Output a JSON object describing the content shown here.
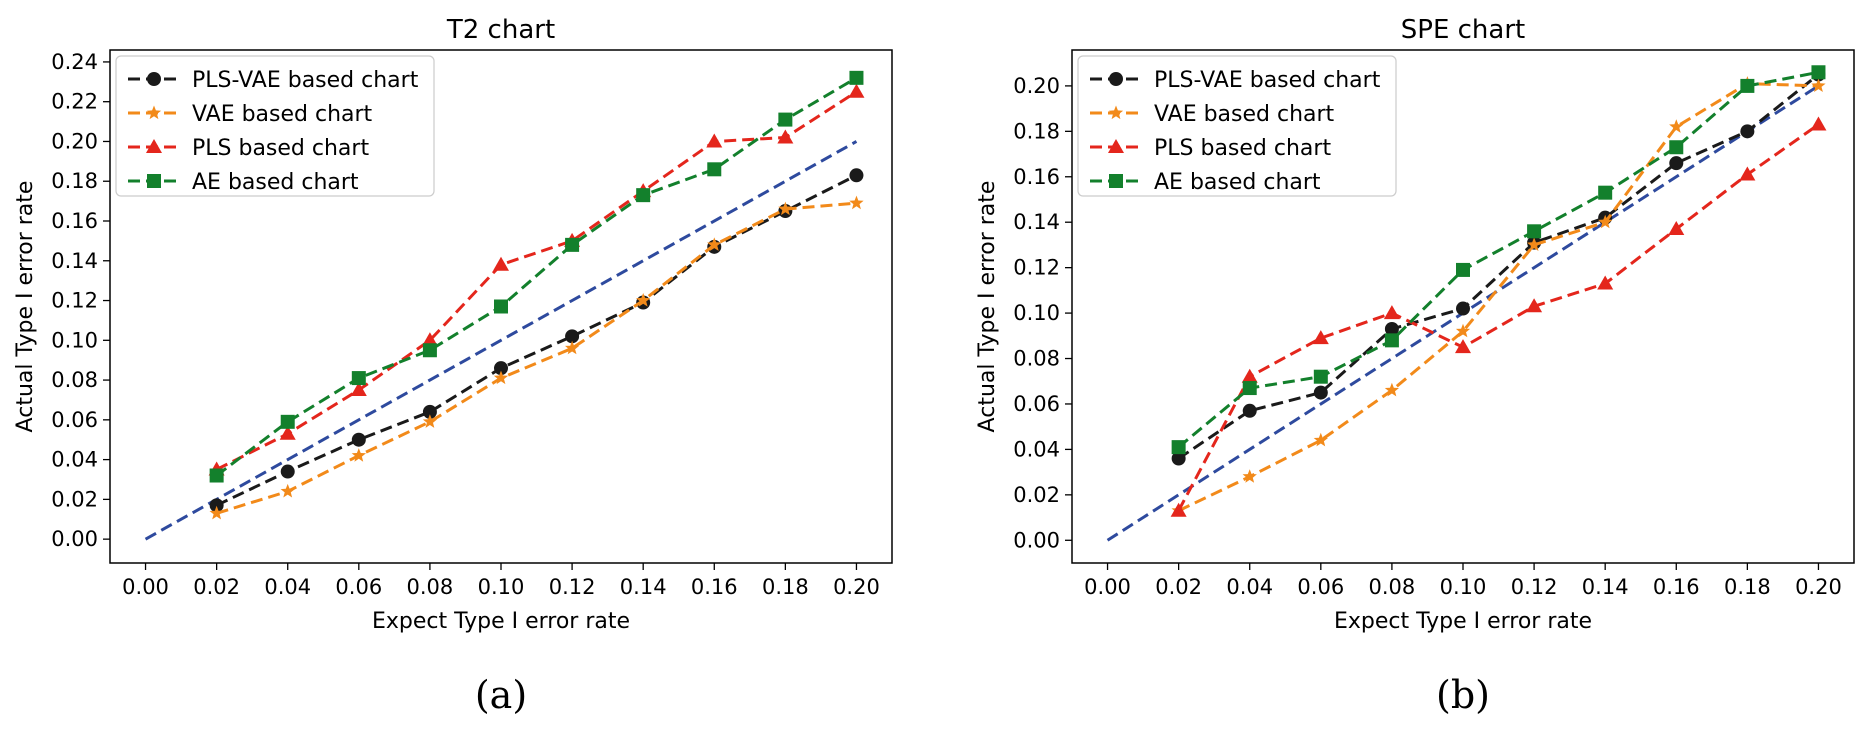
{
  "chart_data": [
    {
      "type": "line",
      "title": "T2 chart",
      "xlabel": "Expect Type I error rate",
      "ylabel": "Actual Type I error rate",
      "caption": "(a)",
      "xlim": [
        -0.01,
        0.21
      ],
      "ylim": [
        -0.012,
        0.246
      ],
      "xticks": [
        0.0,
        0.02,
        0.04,
        0.06,
        0.08,
        0.1,
        0.12,
        0.14,
        0.16,
        0.18,
        0.2
      ],
      "xtick_labels": [
        "0.00",
        "0.02",
        "0.04",
        "0.06",
        "0.08",
        "0.10",
        "0.12",
        "0.14",
        "0.16",
        "0.18",
        "0.20"
      ],
      "yticks": [
        0.0,
        0.02,
        0.04,
        0.06,
        0.08,
        0.1,
        0.12,
        0.14,
        0.16,
        0.18,
        0.2,
        0.22,
        0.24
      ],
      "ytick_labels": [
        "0.00",
        "0.02",
        "0.04",
        "0.06",
        "0.08",
        "0.10",
        "0.12",
        "0.14",
        "0.16",
        "0.18",
        "0.20",
        "0.22",
        "0.24"
      ],
      "legend_position": "top-left",
      "reference_line": {
        "x": [
          0.0,
          0.2
        ],
        "y": [
          0.0,
          0.2
        ],
        "color": "#2e4a9e"
      },
      "x": [
        0.02,
        0.04,
        0.06,
        0.08,
        0.1,
        0.12,
        0.14,
        0.16,
        0.18,
        0.2
      ],
      "series": [
        {
          "name": "PLS-VAE based chart",
          "color": "#1a1a1a",
          "marker": "circle",
          "values": [
            0.017,
            0.034,
            0.05,
            0.064,
            0.086,
            0.102,
            0.119,
            0.147,
            0.165,
            0.183
          ]
        },
        {
          "name": "VAE based chart",
          "color": "#f28a1a",
          "marker": "star",
          "values": [
            0.013,
            0.024,
            0.042,
            0.059,
            0.081,
            0.096,
            0.12,
            0.148,
            0.166,
            0.169
          ]
        },
        {
          "name": "PLS based chart",
          "color": "#e4261c",
          "marker": "triangle",
          "values": [
            0.035,
            0.053,
            0.075,
            0.1,
            0.138,
            0.15,
            0.175,
            0.2,
            0.202,
            0.225
          ]
        },
        {
          "name": "AE based chart",
          "color": "#13802c",
          "marker": "square",
          "values": [
            0.032,
            0.059,
            0.081,
            0.095,
            0.117,
            0.148,
            0.173,
            0.186,
            0.211,
            0.232
          ]
        }
      ]
    },
    {
      "type": "line",
      "title": "SPE chart",
      "xlabel": "Expect Type I error rate",
      "ylabel": "Actual Type I error rate",
      "caption": "(b)",
      "xlim": [
        -0.01,
        0.21
      ],
      "ylim": [
        -0.01,
        0.2158
      ],
      "xticks": [
        0.0,
        0.02,
        0.04,
        0.06,
        0.08,
        0.1,
        0.12,
        0.14,
        0.16,
        0.18,
        0.2
      ],
      "xtick_labels": [
        "0.00",
        "0.02",
        "0.04",
        "0.06",
        "0.08",
        "0.10",
        "0.12",
        "0.14",
        "0.16",
        "0.18",
        "0.20"
      ],
      "yticks": [
        0.0,
        0.02,
        0.04,
        0.06,
        0.08,
        0.1,
        0.12,
        0.14,
        0.16,
        0.18,
        0.2
      ],
      "ytick_labels": [
        "0.00",
        "0.02",
        "0.04",
        "0.06",
        "0.08",
        "0.10",
        "0.12",
        "0.14",
        "0.16",
        "0.18",
        "0.20"
      ],
      "legend_position": "top-left",
      "reference_line": {
        "x": [
          0.0,
          0.2
        ],
        "y": [
          0.0,
          0.2
        ],
        "color": "#2e4a9e"
      },
      "x": [
        0.02,
        0.04,
        0.06,
        0.08,
        0.1,
        0.12,
        0.14,
        0.16,
        0.18,
        0.2
      ],
      "series": [
        {
          "name": "PLS-VAE based chart",
          "color": "#1a1a1a",
          "marker": "circle",
          "values": [
            0.036,
            0.057,
            0.065,
            0.093,
            0.102,
            0.131,
            0.142,
            0.166,
            0.18,
            0.205
          ]
        },
        {
          "name": "VAE based chart",
          "color": "#f28a1a",
          "marker": "star",
          "values": [
            0.013,
            0.028,
            0.044,
            0.066,
            0.092,
            0.13,
            0.14,
            0.182,
            0.201,
            0.2
          ]
        },
        {
          "name": "PLS based chart",
          "color": "#e4261c",
          "marker": "triangle",
          "values": [
            0.013,
            0.072,
            0.089,
            0.1,
            0.085,
            0.103,
            0.113,
            0.137,
            0.161,
            0.183
          ]
        },
        {
          "name": "AE based chart",
          "color": "#13802c",
          "marker": "square",
          "values": [
            0.041,
            0.067,
            0.072,
            0.088,
            0.119,
            0.136,
            0.153,
            0.173,
            0.2,
            0.206
          ]
        }
      ]
    }
  ]
}
